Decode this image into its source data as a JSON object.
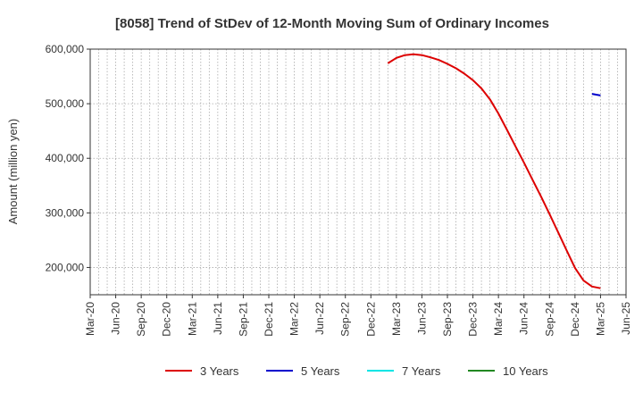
{
  "chart_data": {
    "type": "line",
    "title": "[8058]  Trend of StDev of 12-Month Moving Sum of Ordinary Incomes",
    "xlabel": "",
    "ylabel": "Amount (million yen)",
    "ylim": [
      150000,
      600000
    ],
    "y_ticks": [
      "200,000",
      "300,000",
      "400,000",
      "500,000",
      "600,000"
    ],
    "x_ticks": [
      "Mar-20",
      "Jun-20",
      "Sep-20",
      "Dec-20",
      "Mar-21",
      "Jun-21",
      "Sep-21",
      "Dec-21",
      "Mar-22",
      "Jun-22",
      "Sep-22",
      "Dec-22",
      "Mar-23",
      "Jun-23",
      "Sep-23",
      "Dec-23",
      "Mar-24",
      "Jun-24",
      "Sep-24",
      "Dec-24",
      "Mar-25",
      "Jun-25"
    ],
    "grid": true,
    "legend_position": "bottom",
    "series": [
      {
        "name": "3 Years",
        "color": "#dd0000",
        "points": [
          [
            "2023-02",
            574000
          ],
          [
            "2023-03",
            584000
          ],
          [
            "2023-04",
            589000
          ],
          [
            "2023-05",
            590500
          ],
          [
            "2023-06",
            589000
          ],
          [
            "2023-07",
            585000
          ],
          [
            "2023-08",
            580000
          ],
          [
            "2023-09",
            573000
          ],
          [
            "2023-10",
            565000
          ],
          [
            "2023-11",
            555000
          ],
          [
            "2023-12",
            543000
          ],
          [
            "2024-01",
            528000
          ],
          [
            "2024-02",
            508000
          ],
          [
            "2024-03",
            482000
          ],
          [
            "2024-04",
            452000
          ],
          [
            "2024-05",
            422000
          ],
          [
            "2024-06",
            392000
          ],
          [
            "2024-07",
            361000
          ],
          [
            "2024-08",
            330000
          ],
          [
            "2024-09",
            298000
          ],
          [
            "2024-10",
            265000
          ],
          [
            "2024-11",
            232000
          ],
          [
            "2024-12",
            199000
          ],
          [
            "2025-01",
            176000
          ],
          [
            "2025-02",
            165000
          ],
          [
            "2025-03",
            162000
          ]
        ]
      },
      {
        "name": "5 Years",
        "color": "#0000cc",
        "points": [
          [
            "2025-02",
            518000
          ],
          [
            "2025-03",
            515000
          ]
        ]
      },
      {
        "name": "7 Years",
        "color": "#00e5e5",
        "points": []
      },
      {
        "name": "10 Years",
        "color": "#228822",
        "points": []
      }
    ]
  }
}
